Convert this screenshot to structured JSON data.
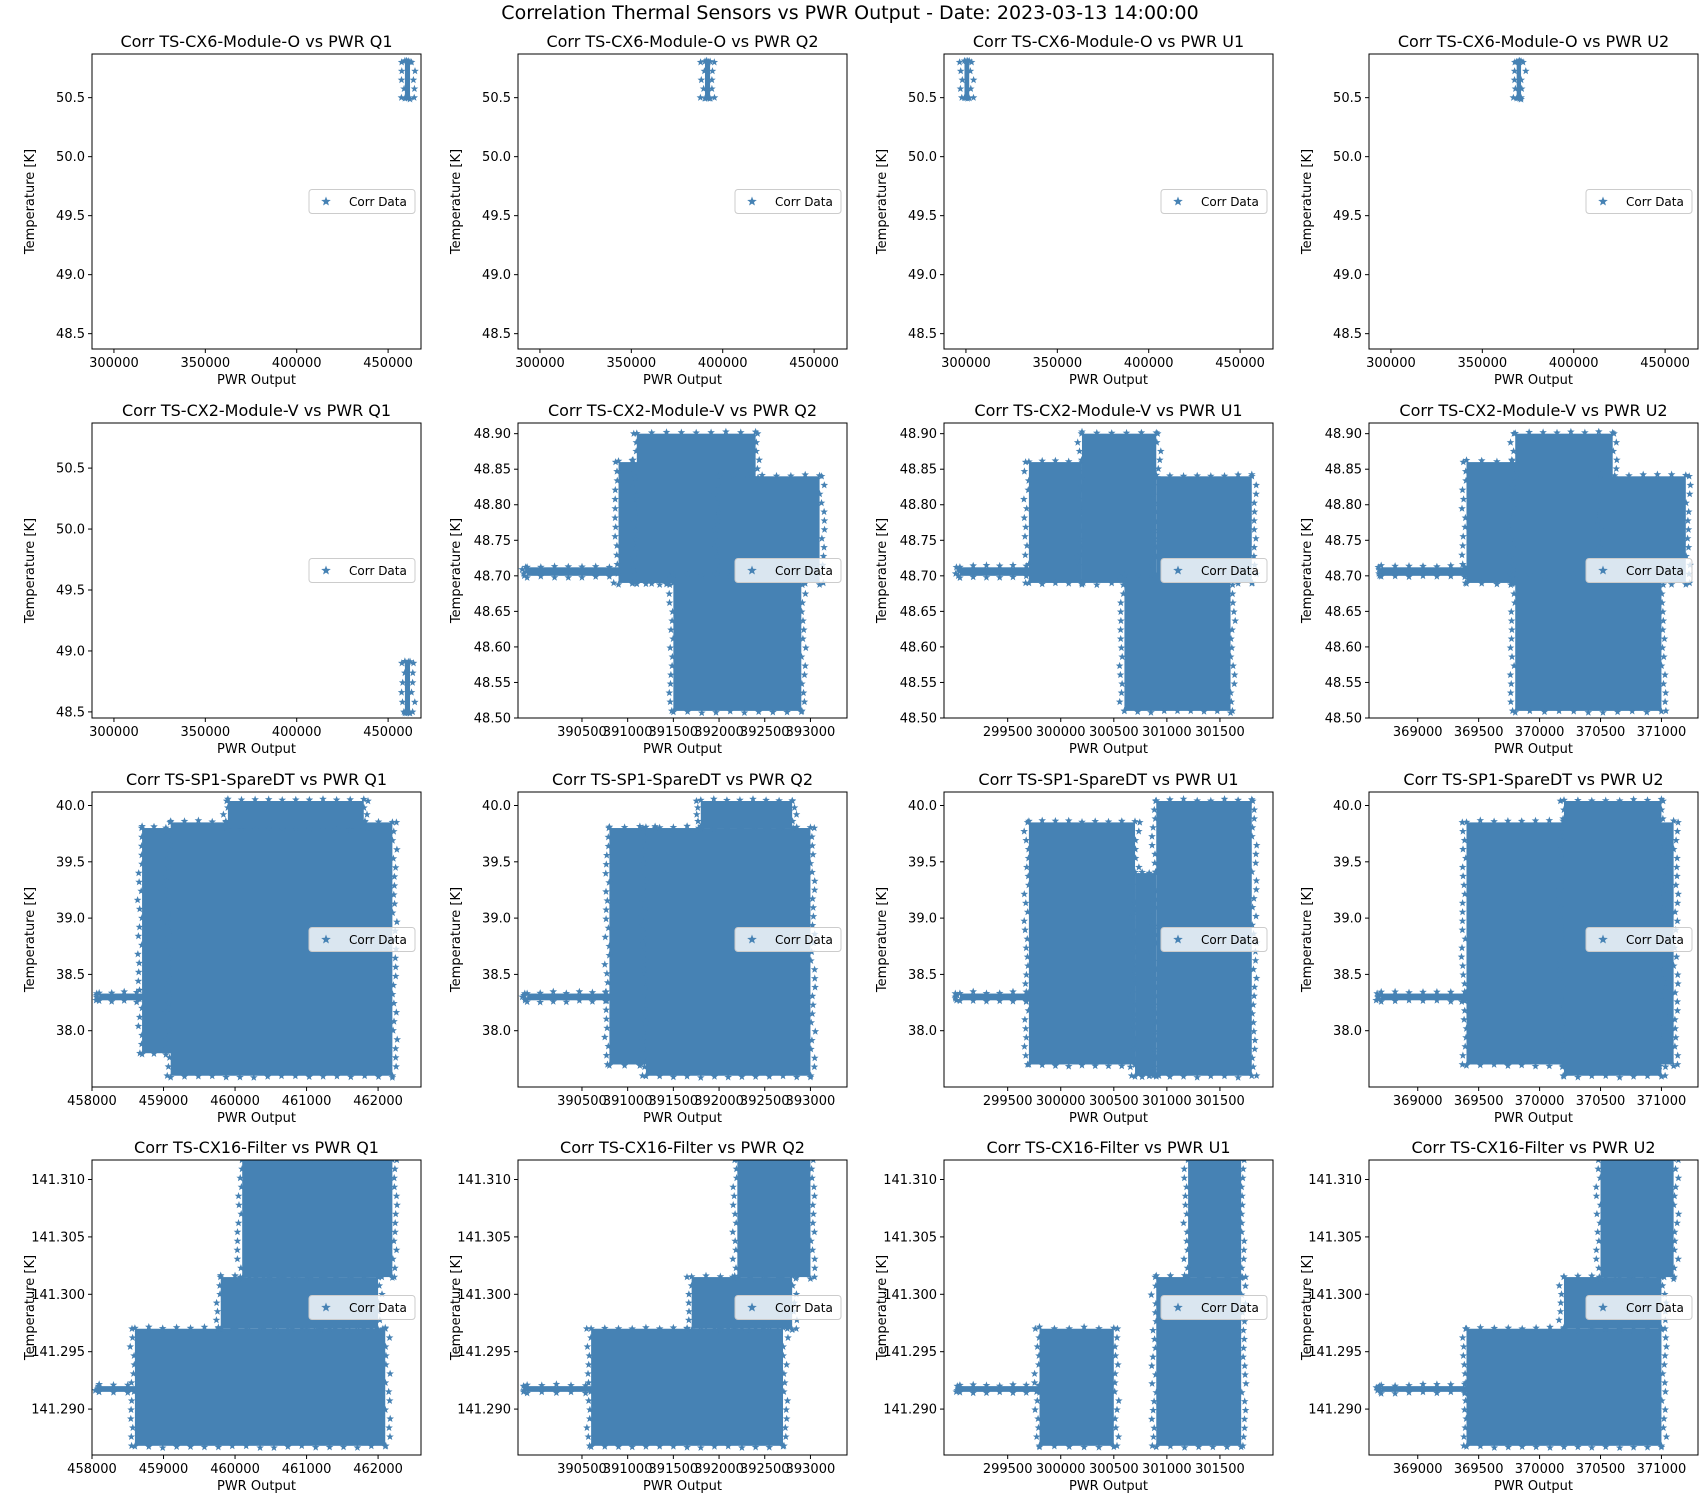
{
  "figure_title": "Correlation Thermal Sensors vs PWR Output - Date: 2023-03-13 14:00:00",
  "colors": {
    "marker": "#4682b4",
    "axes": "#000000",
    "background": "#ffffff"
  },
  "legend_label": "Corr Data",
  "chart_data": [
    {
      "type": "scatter",
      "title": "Corr TS-CX6-Module-O vs PWR Q1",
      "xlabel": "PWR Output",
      "ylabel": "Temperature [K]",
      "xlim": [
        288000,
        468000
      ],
      "ylim": [
        48.37,
        50.87
      ],
      "xticks": [
        300000,
        350000,
        400000,
        450000
      ],
      "xtick_labels": [
        "300000",
        "350000",
        "400000",
        "450000"
      ],
      "yticks": [
        48.5,
        49.0,
        49.5,
        50.0,
        50.5
      ],
      "ytick_labels": [
        "48.5",
        "49.0",
        "49.5",
        "50.0",
        "50.5"
      ],
      "legend": "right",
      "regions": [
        {
          "x0": 459200,
          "x1": 462000,
          "y0": 50.5,
          "y1": 50.8
        }
      ]
    },
    {
      "type": "scatter",
      "title": "Corr TS-CX6-Module-O vs PWR Q2",
      "xlabel": "PWR Output",
      "ylabel": "Temperature [K]",
      "xlim": [
        288000,
        468000
      ],
      "ylim": [
        48.37,
        50.87
      ],
      "xticks": [
        300000,
        350000,
        400000,
        450000
      ],
      "xtick_labels": [
        "300000",
        "350000",
        "400000",
        "450000"
      ],
      "yticks": [
        48.5,
        49.0,
        49.5,
        50.0,
        50.5
      ],
      "ytick_labels": [
        "48.5",
        "49.0",
        "49.5",
        "50.0",
        "50.5"
      ],
      "legend": "right",
      "regions": [
        {
          "x0": 390300,
          "x1": 393100,
          "y0": 50.5,
          "y1": 50.8
        }
      ]
    },
    {
      "type": "scatter",
      "title": "Corr TS-CX6-Module-O vs PWR U1",
      "xlabel": "PWR Output",
      "ylabel": "Temperature [K]",
      "xlim": [
        288000,
        468000
      ],
      "ylim": [
        48.37,
        50.87
      ],
      "xticks": [
        300000,
        350000,
        400000,
        450000
      ],
      "xtick_labels": [
        "300000",
        "350000",
        "400000",
        "450000"
      ],
      "yticks": [
        48.5,
        49.0,
        49.5,
        50.0,
        50.5
      ],
      "ytick_labels": [
        "48.5",
        "49.0",
        "49.5",
        "50.0",
        "50.5"
      ],
      "legend": "right",
      "regions": [
        {
          "x0": 299200,
          "x1": 301800,
          "y0": 50.5,
          "y1": 50.8
        }
      ]
    },
    {
      "type": "scatter",
      "title": "Corr TS-CX6-Module-O vs PWR U2",
      "xlabel": "PWR Output",
      "ylabel": "Temperature [K]",
      "xlim": [
        288000,
        468000
      ],
      "ylim": [
        48.37,
        50.87
      ],
      "xticks": [
        300000,
        350000,
        400000,
        450000
      ],
      "xtick_labels": [
        "300000",
        "350000",
        "400000",
        "450000"
      ],
      "yticks": [
        48.5,
        49.0,
        49.5,
        50.0,
        50.5
      ],
      "ytick_labels": [
        "48.5",
        "49.0",
        "49.5",
        "50.0",
        "50.5"
      ],
      "legend": "right",
      "regions": [
        {
          "x0": 368800,
          "x1": 371200,
          "y0": 50.5,
          "y1": 50.8
        }
      ]
    },
    {
      "type": "scatter",
      "title": "Corr TS-CX2-Module-V vs PWR Q1",
      "xlabel": "PWR Output",
      "ylabel": "Temperature [K]",
      "xlim": [
        288000,
        468000
      ],
      "ylim": [
        48.45,
        50.87
      ],
      "xticks": [
        300000,
        350000,
        400000,
        450000
      ],
      "xtick_labels": [
        "300000",
        "350000",
        "400000",
        "450000"
      ],
      "yticks": [
        48.5,
        49.0,
        49.5,
        50.0,
        50.5
      ],
      "ytick_labels": [
        "48.5",
        "49.0",
        "49.5",
        "50.0",
        "50.5"
      ],
      "legend": "right",
      "regions": [
        {
          "x0": 459200,
          "x1": 462000,
          "y0": 48.5,
          "y1": 48.9
        }
      ]
    },
    {
      "type": "scatter",
      "title": "Corr TS-CX2-Module-V vs PWR Q2",
      "xlabel": "PWR Output",
      "ylabel": "Temperature [K]",
      "xlim": [
        389800,
        393400
      ],
      "ylim": [
        48.5,
        48.915
      ],
      "xticks": [
        390500,
        391000,
        391500,
        392000,
        392500,
        393000
      ],
      "xtick_labels": [
        "390500",
        "391000",
        "391500",
        "392000",
        "392500",
        "393000"
      ],
      "yticks": [
        48.5,
        48.55,
        48.6,
        48.65,
        48.7,
        48.75,
        48.8,
        48.85,
        48.9
      ],
      "ytick_labels": [
        "48.50",
        "48.55",
        "48.60",
        "48.65",
        "48.70",
        "48.75",
        "48.80",
        "48.85",
        "48.90"
      ],
      "legend": "right",
      "regions": [
        {
          "x0": 389900,
          "x1": 391100,
          "y0": 48.7,
          "y1": 48.712
        },
        {
          "x0": 390900,
          "x1": 391500,
          "y0": 48.69,
          "y1": 48.86
        },
        {
          "x0": 391100,
          "x1": 392400,
          "y0": 48.69,
          "y1": 48.9
        },
        {
          "x0": 392000,
          "x1": 393100,
          "y0": 48.69,
          "y1": 48.84
        },
        {
          "x0": 391500,
          "x1": 392900,
          "y0": 48.51,
          "y1": 48.7
        }
      ]
    },
    {
      "type": "scatter",
      "title": "Corr TS-CX2-Module-V vs PWR U1",
      "xlabel": "PWR Output",
      "ylabel": "Temperature [K]",
      "xlim": [
        298900,
        302000
      ],
      "ylim": [
        48.5,
        48.915
      ],
      "xticks": [
        299500,
        300000,
        300500,
        301000,
        301500
      ],
      "xtick_labels": [
        "299500",
        "300000",
        "300500",
        "301000",
        "301500"
      ],
      "yticks": [
        48.5,
        48.55,
        48.6,
        48.65,
        48.7,
        48.75,
        48.8,
        48.85,
        48.9
      ],
      "ytick_labels": [
        "48.50",
        "48.55",
        "48.60",
        "48.65",
        "48.70",
        "48.75",
        "48.80",
        "48.85",
        "48.90"
      ],
      "legend": "right",
      "regions": [
        {
          "x0": 299050,
          "x1": 299800,
          "y0": 48.7,
          "y1": 48.712
        },
        {
          "x0": 299700,
          "x1": 300200,
          "y0": 48.69,
          "y1": 48.86
        },
        {
          "x0": 300200,
          "x1": 300900,
          "y0": 48.69,
          "y1": 48.9
        },
        {
          "x0": 300900,
          "x1": 301800,
          "y0": 48.69,
          "y1": 48.84
        },
        {
          "x0": 300600,
          "x1": 301600,
          "y0": 48.51,
          "y1": 48.7
        }
      ]
    },
    {
      "type": "scatter",
      "title": "Corr TS-CX2-Module-V vs PWR U2",
      "xlabel": "PWR Output",
      "ylabel": "Temperature [K]",
      "xlim": [
        368600,
        371300
      ],
      "ylim": [
        48.5,
        48.915
      ],
      "xticks": [
        369000,
        369500,
        370000,
        370500,
        371000
      ],
      "xtick_labels": [
        "369000",
        "369500",
        "370000",
        "370500",
        "371000"
      ],
      "yticks": [
        48.5,
        48.55,
        48.6,
        48.65,
        48.7,
        48.75,
        48.8,
        48.85,
        48.9
      ],
      "ytick_labels": [
        "48.50",
        "48.55",
        "48.60",
        "48.65",
        "48.70",
        "48.75",
        "48.80",
        "48.85",
        "48.90"
      ],
      "legend": "right",
      "regions": [
        {
          "x0": 368700,
          "x1": 369500,
          "y0": 48.7,
          "y1": 48.712
        },
        {
          "x0": 369400,
          "x1": 369900,
          "y0": 48.69,
          "y1": 48.86
        },
        {
          "x0": 369800,
          "x1": 370600,
          "y0": 48.69,
          "y1": 48.9
        },
        {
          "x0": 370500,
          "x1": 371200,
          "y0": 48.69,
          "y1": 48.84
        },
        {
          "x0": 369800,
          "x1": 371000,
          "y0": 48.51,
          "y1": 48.7
        }
      ]
    },
    {
      "type": "scatter",
      "title": "Corr TS-SP1-SpareDT vs PWR Q1",
      "xlabel": "PWR Output",
      "ylabel": "Temperature [K]",
      "xlim": [
        458000,
        462600
      ],
      "ylim": [
        37.5,
        40.12
      ],
      "xticks": [
        458000,
        459000,
        460000,
        461000,
        462000
      ],
      "xtick_labels": [
        "458000",
        "459000",
        "460000",
        "461000",
        "462000"
      ],
      "yticks": [
        38.0,
        38.5,
        39.0,
        39.5,
        40.0
      ],
      "ytick_labels": [
        "38.0",
        "38.5",
        "39.0",
        "39.5",
        "40.0"
      ],
      "legend": "right",
      "regions": [
        {
          "x0": 458100,
          "x1": 458800,
          "y0": 38.27,
          "y1": 38.33
        },
        {
          "x0": 458700,
          "x1": 459200,
          "y0": 37.8,
          "y1": 39.8
        },
        {
          "x0": 459100,
          "x1": 462200,
          "y0": 37.6,
          "y1": 39.85
        },
        {
          "x0": 459900,
          "x1": 461800,
          "y0": 39.8,
          "y1": 40.04
        }
      ]
    },
    {
      "type": "scatter",
      "title": "Corr TS-SP1-SpareDT vs PWR Q2",
      "xlabel": "PWR Output",
      "ylabel": "Temperature [K]",
      "xlim": [
        389800,
        393400
      ],
      "ylim": [
        37.5,
        40.12
      ],
      "xticks": [
        390500,
        391000,
        391500,
        392000,
        392500,
        393000
      ],
      "xtick_labels": [
        "390500",
        "391000",
        "391500",
        "392000",
        "392500",
        "393000"
      ],
      "yticks": [
        38.0,
        38.5,
        39.0,
        39.5,
        40.0
      ],
      "ytick_labels": [
        "38.0",
        "38.5",
        "39.0",
        "39.5",
        "40.0"
      ],
      "legend": "right",
      "regions": [
        {
          "x0": 389900,
          "x1": 390900,
          "y0": 38.27,
          "y1": 38.33
        },
        {
          "x0": 390800,
          "x1": 391300,
          "y0": 37.7,
          "y1": 39.8
        },
        {
          "x0": 391200,
          "x1": 393000,
          "y0": 37.6,
          "y1": 39.8
        },
        {
          "x0": 391800,
          "x1": 392800,
          "y0": 39.8,
          "y1": 40.04
        }
      ]
    },
    {
      "type": "scatter",
      "title": "Corr TS-SP1-SpareDT vs PWR U1",
      "xlabel": "PWR Output",
      "ylabel": "Temperature [K]",
      "xlim": [
        298900,
        302000
      ],
      "ylim": [
        37.5,
        40.12
      ],
      "xticks": [
        299500,
        300000,
        300500,
        301000,
        301500
      ],
      "xtick_labels": [
        "299500",
        "300000",
        "300500",
        "301000",
        "301500"
      ],
      "yticks": [
        38.0,
        38.5,
        39.0,
        39.5,
        40.0
      ],
      "ytick_labels": [
        "38.0",
        "38.5",
        "39.0",
        "39.5",
        "40.0"
      ],
      "legend": "right",
      "regions": [
        {
          "x0": 299050,
          "x1": 299800,
          "y0": 38.27,
          "y1": 38.33
        },
        {
          "x0": 299700,
          "x1": 300700,
          "y0": 37.7,
          "y1": 39.85
        },
        {
          "x0": 300700,
          "x1": 300900,
          "y0": 37.6,
          "y1": 39.4
        },
        {
          "x0": 300900,
          "x1": 301800,
          "y0": 37.6,
          "y1": 40.04
        }
      ]
    },
    {
      "type": "scatter",
      "title": "Corr TS-SP1-SpareDT vs PWR U2",
      "xlabel": "PWR Output",
      "ylabel": "Temperature [K]",
      "xlim": [
        368600,
        371300
      ],
      "ylim": [
        37.5,
        40.12
      ],
      "xticks": [
        369000,
        369500,
        370000,
        370500,
        371000
      ],
      "xtick_labels": [
        "369000",
        "369500",
        "370000",
        "370500",
        "371000"
      ],
      "yticks": [
        38.0,
        38.5,
        39.0,
        39.5,
        40.0
      ],
      "ytick_labels": [
        "38.0",
        "38.5",
        "39.0",
        "39.5",
        "40.0"
      ],
      "legend": "right",
      "regions": [
        {
          "x0": 368700,
          "x1": 369500,
          "y0": 38.27,
          "y1": 38.33
        },
        {
          "x0": 369400,
          "x1": 371100,
          "y0": 37.7,
          "y1": 39.85
        },
        {
          "x0": 370200,
          "x1": 371000,
          "y0": 37.6,
          "y1": 40.04
        }
      ]
    },
    {
      "type": "scatter",
      "title": "Corr TS-CX16-Filter vs PWR Q1",
      "xlabel": "PWR Output",
      "ylabel": "Temperature [K]",
      "xlim": [
        458000,
        462600
      ],
      "ylim": [
        141.286,
        141.3117
      ],
      "xticks": [
        458000,
        459000,
        460000,
        461000,
        462000
      ],
      "xtick_labels": [
        "458000",
        "459000",
        "460000",
        "461000",
        "462000"
      ],
      "yticks": [
        141.29,
        141.295,
        141.3,
        141.305,
        141.31
      ],
      "ytick_labels": [
        "141.290",
        "141.295",
        "141.300",
        "141.305",
        "141.310"
      ],
      "legend": "right",
      "regions": [
        {
          "x0": 458100,
          "x1": 458700,
          "y0": 141.2915,
          "y1": 141.292
        },
        {
          "x0": 458600,
          "x1": 462100,
          "y0": 141.2868,
          "y1": 141.297
        },
        {
          "x0": 459800,
          "x1": 462000,
          "y0": 141.297,
          "y1": 141.3015
        },
        {
          "x0": 460100,
          "x1": 462200,
          "y0": 141.3015,
          "y1": 141.3117
        }
      ]
    },
    {
      "type": "scatter",
      "title": "Corr TS-CX16-Filter vs PWR Q2",
      "xlabel": "PWR Output",
      "ylabel": "Temperature [K]",
      "xlim": [
        389800,
        393400
      ],
      "ylim": [
        141.286,
        141.3117
      ],
      "xticks": [
        390500,
        391000,
        391500,
        392000,
        392500,
        393000
      ],
      "xtick_labels": [
        "390500",
        "391000",
        "391500",
        "392000",
        "392500",
        "393000"
      ],
      "yticks": [
        141.29,
        141.295,
        141.3,
        141.305,
        141.31
      ],
      "ytick_labels": [
        "141.290",
        "141.295",
        "141.300",
        "141.305",
        "141.310"
      ],
      "legend": "right",
      "regions": [
        {
          "x0": 389900,
          "x1": 390700,
          "y0": 141.2915,
          "y1": 141.292
        },
        {
          "x0": 390600,
          "x1": 392700,
          "y0": 141.2868,
          "y1": 141.297
        },
        {
          "x0": 391700,
          "x1": 392800,
          "y0": 141.297,
          "y1": 141.3015
        },
        {
          "x0": 392200,
          "x1": 393000,
          "y0": 141.3015,
          "y1": 141.3117
        }
      ]
    },
    {
      "type": "scatter",
      "title": "Corr TS-CX16-Filter vs PWR U1",
      "xlabel": "PWR Output",
      "ylabel": "Temperature [K]",
      "xlim": [
        298900,
        302000
      ],
      "ylim": [
        141.286,
        141.3117
      ],
      "xticks": [
        299500,
        300000,
        300500,
        301000,
        301500
      ],
      "xtick_labels": [
        "299500",
        "300000",
        "300500",
        "301000",
        "301500"
      ],
      "yticks": [
        141.29,
        141.295,
        141.3,
        141.305,
        141.31
      ],
      "ytick_labels": [
        "141.290",
        "141.295",
        "141.300",
        "141.305",
        "141.310"
      ],
      "legend": "right",
      "regions": [
        {
          "x0": 299050,
          "x1": 299800,
          "y0": 141.2915,
          "y1": 141.292
        },
        {
          "x0": 299800,
          "x1": 300500,
          "y0": 141.2868,
          "y1": 141.297
        },
        {
          "x0": 300900,
          "x1": 301700,
          "y0": 141.2868,
          "y1": 141.3015
        },
        {
          "x0": 301200,
          "x1": 301700,
          "y0": 141.3015,
          "y1": 141.3117
        }
      ]
    },
    {
      "type": "scatter",
      "title": "Corr TS-CX16-Filter vs PWR U2",
      "xlabel": "PWR Output",
      "ylabel": "Temperature [K]",
      "xlim": [
        368600,
        371300
      ],
      "ylim": [
        141.286,
        141.3117
      ],
      "xticks": [
        369000,
        369500,
        370000,
        370500,
        371000
      ],
      "xtick_labels": [
        "369000",
        "369500",
        "370000",
        "370500",
        "371000"
      ],
      "yticks": [
        141.29,
        141.295,
        141.3,
        141.305,
        141.31
      ],
      "ytick_labels": [
        "141.290",
        "141.295",
        "141.300",
        "141.305",
        "141.310"
      ],
      "legend": "right",
      "regions": [
        {
          "x0": 368700,
          "x1": 369500,
          "y0": 141.2915,
          "y1": 141.292
        },
        {
          "x0": 369400,
          "x1": 371000,
          "y0": 141.2868,
          "y1": 141.297
        },
        {
          "x0": 370200,
          "x1": 371000,
          "y0": 141.297,
          "y1": 141.3015
        },
        {
          "x0": 370500,
          "x1": 371100,
          "y0": 141.3015,
          "y1": 141.3117
        }
      ]
    }
  ]
}
